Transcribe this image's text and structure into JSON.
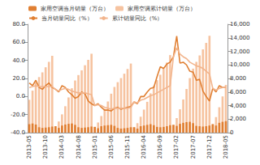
{
  "chart_data": {
    "type": "bar",
    "categories": [
      "2013-05",
      null,
      null,
      null,
      null,
      "2013-10",
      null,
      null,
      null,
      null,
      "2014-03",
      null,
      null,
      null,
      null,
      "2014-08",
      null,
      null,
      null,
      null,
      "2015-01",
      null,
      null,
      null,
      null,
      "2015-06",
      null,
      null,
      null,
      null,
      "2015-11",
      null,
      null,
      null,
      null,
      "2016-04",
      null,
      null,
      null,
      null,
      "2016-09",
      null,
      null,
      null,
      null,
      "2017-02",
      null,
      null,
      null,
      null,
      "2017-07",
      null,
      null,
      null,
      null,
      "2017-12",
      null,
      null,
      null,
      null,
      "2018-05"
    ],
    "series": [
      {
        "name": "家用空调累计销量（万台）",
        "type": "bar",
        "axis": "y2",
        "color": "#f6c3a0",
        "values": [
          4850,
          6200,
          7400,
          8200,
          8900,
          9650,
          10450,
          11350,
          950,
          1650,
          2700,
          3900,
          5200,
          6550,
          7700,
          8500,
          9200,
          9950,
          10750,
          11650,
          850,
          1500,
          2450,
          3500,
          4600,
          5750,
          6750,
          7450,
          8050,
          8700,
          9400,
          10200,
          800,
          1400,
          2350,
          3400,
          4550,
          5800,
          6900,
          7750,
          8550,
          9400,
          10350,
          11450,
          1150,
          2150,
          3450,
          4900,
          6450,
          8050,
          9450,
          10450,
          11400,
          12300,
          13250,
          14300,
          1250,
          2300,
          3750,
          5350,
          7050
        ]
      },
      {
        "name": "家用空调当月销量（万台）",
        "type": "bar",
        "axis": "y2",
        "color": "#e07f32",
        "values": [
          1250,
          1350,
          1200,
          800,
          700,
          750,
          800,
          900,
          950,
          700,
          1050,
          1200,
          1300,
          1350,
          1150,
          800,
          700,
          750,
          800,
          900,
          850,
          650,
          950,
          1050,
          1100,
          1150,
          1000,
          700,
          600,
          650,
          700,
          800,
          800,
          600,
          950,
          1050,
          1150,
          1250,
          1100,
          850,
          800,
          850,
          950,
          1100,
          1150,
          1000,
          1300,
          1450,
          1550,
          1600,
          1400,
          1000,
          950,
          900,
          950,
          1050,
          1250,
          1050,
          1450,
          1600,
          1700
        ]
      },
      {
        "name": "当月销量同比（%）",
        "type": "line",
        "color": "#e07f32",
        "line_style": "solid",
        "values": [
          15,
          12,
          18,
          10,
          8,
          12,
          15,
          10,
          8,
          5,
          12,
          10,
          5,
          2,
          -2,
          0,
          5,
          3,
          -5,
          -8,
          -10,
          -8,
          -12,
          -15,
          -15,
          -16,
          -13,
          -12,
          -14,
          -13,
          -12,
          -11,
          -6,
          -8,
          0,
          0,
          5,
          9,
          10,
          22,
          33,
          31,
          36,
          38,
          44,
          67,
          37,
          38,
          35,
          28,
          27,
          18,
          19,
          6,
          0,
          -5,
          9,
          5,
          12,
          10,
          10
        ]
      },
      {
        "name": "累计销量同比（%）",
        "type": "line",
        "color": "#f2b48c",
        "line_style": "solid",
        "values": [
          10,
          11,
          12,
          11,
          11,
          11,
          11,
          11,
          8,
          6,
          8,
          9,
          8,
          6,
          5,
          4,
          4,
          4,
          3,
          2,
          -10,
          -9,
          -10,
          -12,
          -13,
          -14,
          -13,
          -13,
          -13,
          -13,
          -13,
          -12,
          -6,
          -7,
          -4,
          -3,
          -1,
          1,
          2,
          4,
          6,
          8,
          10,
          12,
          44,
          54,
          47,
          44,
          42,
          38,
          36,
          34,
          33,
          31,
          28,
          25,
          9,
          7,
          9,
          10,
          10
        ]
      }
    ],
    "ylim": [
      -40,
      80
    ],
    "yticks": [
      {
        "value": -40,
        "label": "-40.0"
      },
      {
        "value": -20,
        "label": "-20.0"
      },
      {
        "value": 0,
        "label": "0.0"
      },
      {
        "value": 20,
        "label": "20.0"
      },
      {
        "value": 40,
        "label": "40.0"
      },
      {
        "value": 60,
        "label": "60.0"
      },
      {
        "value": 80,
        "label": "80.0"
      }
    ],
    "y2lim": [
      0,
      16000
    ],
    "y2ticks": [
      0,
      {
        "value": 2000,
        "label": "2,000"
      },
      {
        "value": 4000,
        "label": "4,000"
      },
      {
        "value": 6000,
        "label": "6,000"
      },
      {
        "value": 8000,
        "label": "8,000"
      },
      {
        "value": 10000,
        "label": "10,000"
      },
      {
        "value": 12000,
        "label": "12,000"
      },
      {
        "value": 14000,
        "label": "14,000"
      },
      {
        "value": 16000,
        "label": "16,000"
      }
    ],
    "grid": false,
    "legend": "upper left"
  }
}
